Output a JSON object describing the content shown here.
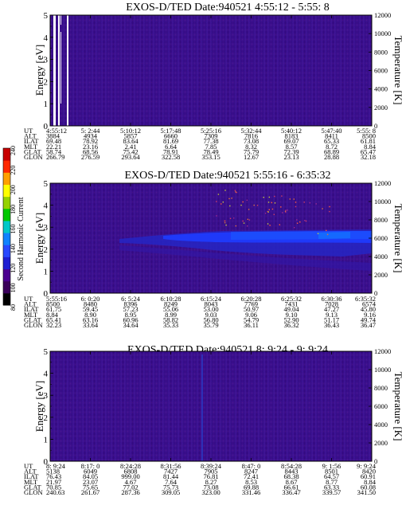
{
  "figure": {
    "colorbar": {
      "label": "Second Harmonic Current",
      "ticks": [
        "240",
        "220",
        "200",
        "180",
        "160",
        "140",
        "120",
        "100",
        "80"
      ],
      "range": [
        80,
        240
      ],
      "colors": [
        "#000000",
        "#3a005a",
        "#4b0090",
        "#1e1ed2",
        "#2848ff",
        "#0f82ff",
        "#00c8c8",
        "#00c800",
        "#96d200",
        "#ffff00",
        "#ffa000",
        "#ff2800",
        "#c80000"
      ]
    }
  },
  "chart_data": [
    {
      "type": "heatmap",
      "title": "EXOS-D/TED   Date:940521  4:55:12 - 5:55: 8",
      "ylabel": "Energy [eV]",
      "y2label": "Temperature [K]",
      "ylim": [
        0,
        5
      ],
      "y2lim": [
        0,
        12000
      ],
      "yticks": [
        "0",
        "1",
        "2",
        "3",
        "4",
        "5"
      ],
      "y2ticks": [
        "0",
        "2000",
        "4000",
        "6000",
        "8000",
        "10000",
        "12000"
      ],
      "background": "#3b1090",
      "features": [
        "data gaps near start of interval (white vertical stripes)"
      ],
      "table": {
        "labels": [
          "UT",
          "ALT",
          "ILAT",
          "MLT",
          "GLAT",
          "GLON"
        ],
        "columns": [
          [
            "4:55:12",
            "3884",
            "69.48",
            "22.21",
            "58.74",
            "266.79"
          ],
          [
            "5: 2:44",
            "4934",
            "78.92",
            "23.16",
            "68.56",
            "276.59"
          ],
          [
            "5:10:12",
            "5857",
            "83.64",
            "2.41",
            "75.42",
            "293.64"
          ],
          [
            "5:17:48",
            "6660",
            "81.69",
            "6.64",
            "78.91",
            "322.58"
          ],
          [
            "5:25:16",
            "7309",
            "77.38",
            "7.85",
            "78.49",
            "353.15"
          ],
          [
            "5:32:44",
            "7816",
            "73.08",
            "8.32",
            "75.79",
            "12.67"
          ],
          [
            "5:40:12",
            "8183",
            "69.07",
            "8.57",
            "72.39",
            "23.13"
          ],
          [
            "5:47:40",
            "8411",
            "65.33",
            "8.72",
            "68.89",
            "28.88"
          ],
          [
            "5:55: 8",
            "8500",
            "61.81",
            "8.84",
            "65.47",
            "32.18"
          ]
        ]
      }
    },
    {
      "type": "heatmap",
      "title": "EXOS-D/TED   Date:940521  5:55:16 - 6:35:32",
      "ylabel": "Energy [eV]",
      "y2label": "Temperature [K]",
      "ylim": [
        0,
        5
      ],
      "y2lim": [
        0,
        12000
      ],
      "yticks": [
        "0",
        "1",
        "2",
        "3",
        "4",
        "5"
      ],
      "y2ticks": [
        "0",
        "2000",
        "4000",
        "6000",
        "8000",
        "10000",
        "12000"
      ],
      "background": "#3b1090",
      "features": [
        "enhanced band 1.5–3 eV in second half of interval",
        "scattered dots above 3 eV"
      ],
      "table": {
        "labels": [
          "UT",
          "ALT",
          "ILAT",
          "MLT",
          "GLAT",
          "GLON"
        ],
        "columns": [
          [
            "5:55:16",
            "8500",
            "61.75",
            "8.84",
            "65.41",
            "32.23"
          ],
          [
            "6: 0:20",
            "8480",
            "59.45",
            "8.90",
            "63.16",
            "33.64"
          ],
          [
            "6: 5:24",
            "8396",
            "57.23",
            "8.95",
            "60.96",
            "34.64"
          ],
          [
            "6:10:28",
            "8249",
            "55.06",
            "8.99",
            "58.82",
            "35.33"
          ],
          [
            "6:15:24",
            "8043",
            "53.00",
            "9.03",
            "56.80",
            "35.79"
          ],
          [
            "6:20:28",
            "7769",
            "50.97",
            "9.06",
            "54.79",
            "36.11"
          ],
          [
            "6:25:32",
            "7431",
            "49.04",
            "9.10",
            "52.90",
            "36.32"
          ],
          [
            "6:30:36",
            "7028",
            "47.27",
            "9.13",
            "51.17",
            "36.43"
          ],
          [
            "6:35:32",
            "6574",
            "45.80",
            "9.16",
            "49.74",
            "36.47"
          ]
        ]
      }
    },
    {
      "type": "heatmap",
      "title": "EXOS-D/TED   Date:940521  8: 9:24 - 9: 9:24",
      "ylabel": "Energy [eV]",
      "y2label": "Temperature [K]",
      "ylim": [
        0,
        5
      ],
      "y2lim": [
        0,
        12000
      ],
      "yticks": [
        "0",
        "1",
        "2",
        "3",
        "4",
        "5"
      ],
      "y2ticks": [
        "0",
        "2000",
        "4000",
        "6000",
        "8000",
        "10000",
        "12000"
      ],
      "background": "#3b1090",
      "features": [
        "faint vertical streak near 8:39"
      ],
      "table": {
        "labels": [
          "UT",
          "ALT",
          "ILAT",
          "MLT",
          "GLAT",
          "GLON"
        ],
        "columns": [
          [
            "8: 9:24",
            "5138",
            "76.43",
            "21.97",
            "70.85",
            "240.63"
          ],
          [
            "8:17: 0",
            "6049",
            "84.05",
            "23.07",
            "75.65",
            "261.67"
          ],
          [
            "8:24:28",
            "6808",
            "999.00",
            "4.67",
            "77.02",
            "287.36"
          ],
          [
            "8:31:56",
            "7427",
            "81.44",
            "7.64",
            "75.73",
            "309.05"
          ],
          [
            "8:39:24",
            "7905",
            "76.81",
            "8.27",
            "73.08",
            "323.00"
          ],
          [
            "8:47: 0",
            "8247",
            "72.41",
            "8.53",
            "69.88",
            "331.46"
          ],
          [
            "8:54:28",
            "8443",
            "68.38",
            "8.67",
            "66.61",
            "336.47"
          ],
          [
            "9: 1:56",
            "8501",
            "64.57",
            "8.77",
            "63.33",
            "339.57"
          ],
          [
            "9: 9:24",
            "8420",
            "60.91",
            "8.84",
            "60.08",
            "341.50"
          ]
        ]
      }
    }
  ]
}
